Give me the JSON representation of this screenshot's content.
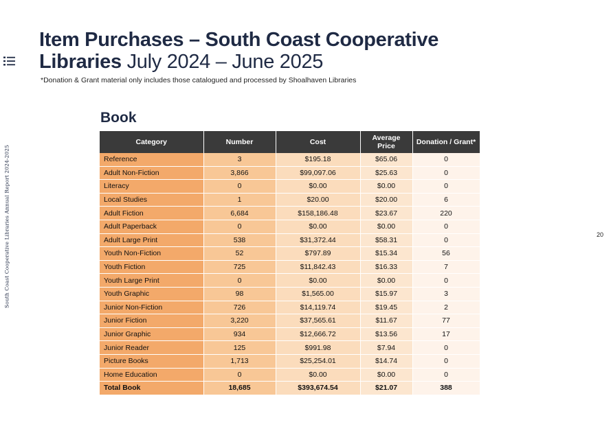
{
  "header": {
    "title_bold_line1": "Item Purchases – South Coast Cooperative",
    "title_bold_line2": "Libraries",
    "title_light": " July 2024 – June 2025",
    "note": "*Donation & Grant material only includes those catalogued and processed by Shoalhaven Libraries"
  },
  "sidebar": {
    "vertical_text": "South Coast Cooperative Libraries Annual Report 2024-2025"
  },
  "page_number": "20",
  "section": {
    "title": "Book"
  },
  "table": {
    "headers": [
      "Category",
      "Number",
      "Cost",
      "Average Price",
      "Donation / Grant*"
    ],
    "rows": [
      [
        "Reference",
        "3",
        "$195.18",
        "$65.06",
        "0"
      ],
      [
        "Adult Non-Fiction",
        "3,866",
        "$99,097.06",
        "$25.63",
        "0"
      ],
      [
        "Literacy",
        "0",
        "$0.00",
        "$0.00",
        "0"
      ],
      [
        "Local Studies",
        "1",
        "$20.00",
        "$20.00",
        "6"
      ],
      [
        "Adult Fiction",
        "6,684",
        "$158,186.48",
        "$23.67",
        "220"
      ],
      [
        "Adult Paperback",
        "0",
        "$0.00",
        "$0.00",
        "0"
      ],
      [
        "Adult Large Print",
        "538",
        "$31,372.44",
        "$58.31",
        "0"
      ],
      [
        "Youth Non-Fiction",
        "52",
        "$797.89",
        "$15.34",
        "56"
      ],
      [
        "Youth Fiction",
        "725",
        "$11,842.43",
        "$16.33",
        "7"
      ],
      [
        "Youth Large Print",
        "0",
        "$0.00",
        "$0.00",
        "0"
      ],
      [
        "Youth Graphic",
        "98",
        "$1,565.00",
        "$15.97",
        "3"
      ],
      [
        "Junior Non-Fiction",
        "726",
        "$14,119.74",
        "$19.45",
        "2"
      ],
      [
        "Junior Fiction",
        "3,220",
        "$37,565.61",
        "$11.67",
        "77"
      ],
      [
        "Junior Graphic",
        "934",
        "$12,666.72",
        "$13.56",
        "17"
      ],
      [
        "Junior Reader",
        "125",
        "$991.98",
        "$7.94",
        "0"
      ],
      [
        "Picture Books",
        "1,713",
        "$25,254.01",
        "$14.74",
        "0"
      ],
      [
        "Home Education",
        "0",
        "$0.00",
        "$0.00",
        "0"
      ]
    ],
    "total": [
      "Total Book",
      "18,685",
      "$393,674.54",
      "$21.07",
      "388"
    ]
  }
}
